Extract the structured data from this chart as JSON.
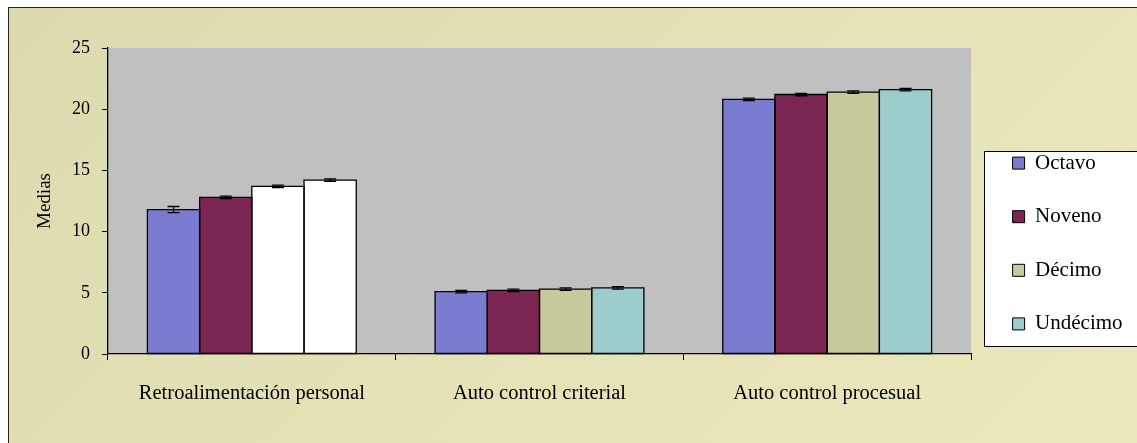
{
  "chart_data": {
    "type": "bar",
    "ylabel": "Medias",
    "categories": [
      "Retroalimentación personal",
      "Auto control criterial",
      "Auto control procesual"
    ],
    "series": [
      {
        "name": "Octavo",
        "color": "#7b7bd0",
        "values": [
          11.8,
          5.1,
          20.8
        ],
        "errors": [
          0.25,
          0.1,
          0.1
        ]
      },
      {
        "name": "Noveno",
        "color": "#7a2552",
        "values": [
          12.8,
          5.2,
          21.2
        ],
        "errors": [
          0.1,
          0.1,
          0.1
        ]
      },
      {
        "name": "Décimo",
        "color": "#c9c99e",
        "colors": [
          "#ffffff",
          "#c9c99e",
          "#c9c99e"
        ],
        "values": [
          13.7,
          5.3,
          21.4
        ],
        "errors": [
          0.1,
          0.1,
          0.1
        ]
      },
      {
        "name": "Undécimo",
        "color": "#9ccccc",
        "colors": [
          "#ffffff",
          "#9ccccc",
          "#9ccccc"
        ],
        "values": [
          14.2,
          5.4,
          21.6
        ],
        "errors": [
          0.1,
          0.1,
          0.1
        ]
      }
    ],
    "ylim": [
      0,
      25
    ],
    "yticks": [
      0,
      5,
      10,
      15,
      20,
      25
    ],
    "legend": "right"
  }
}
